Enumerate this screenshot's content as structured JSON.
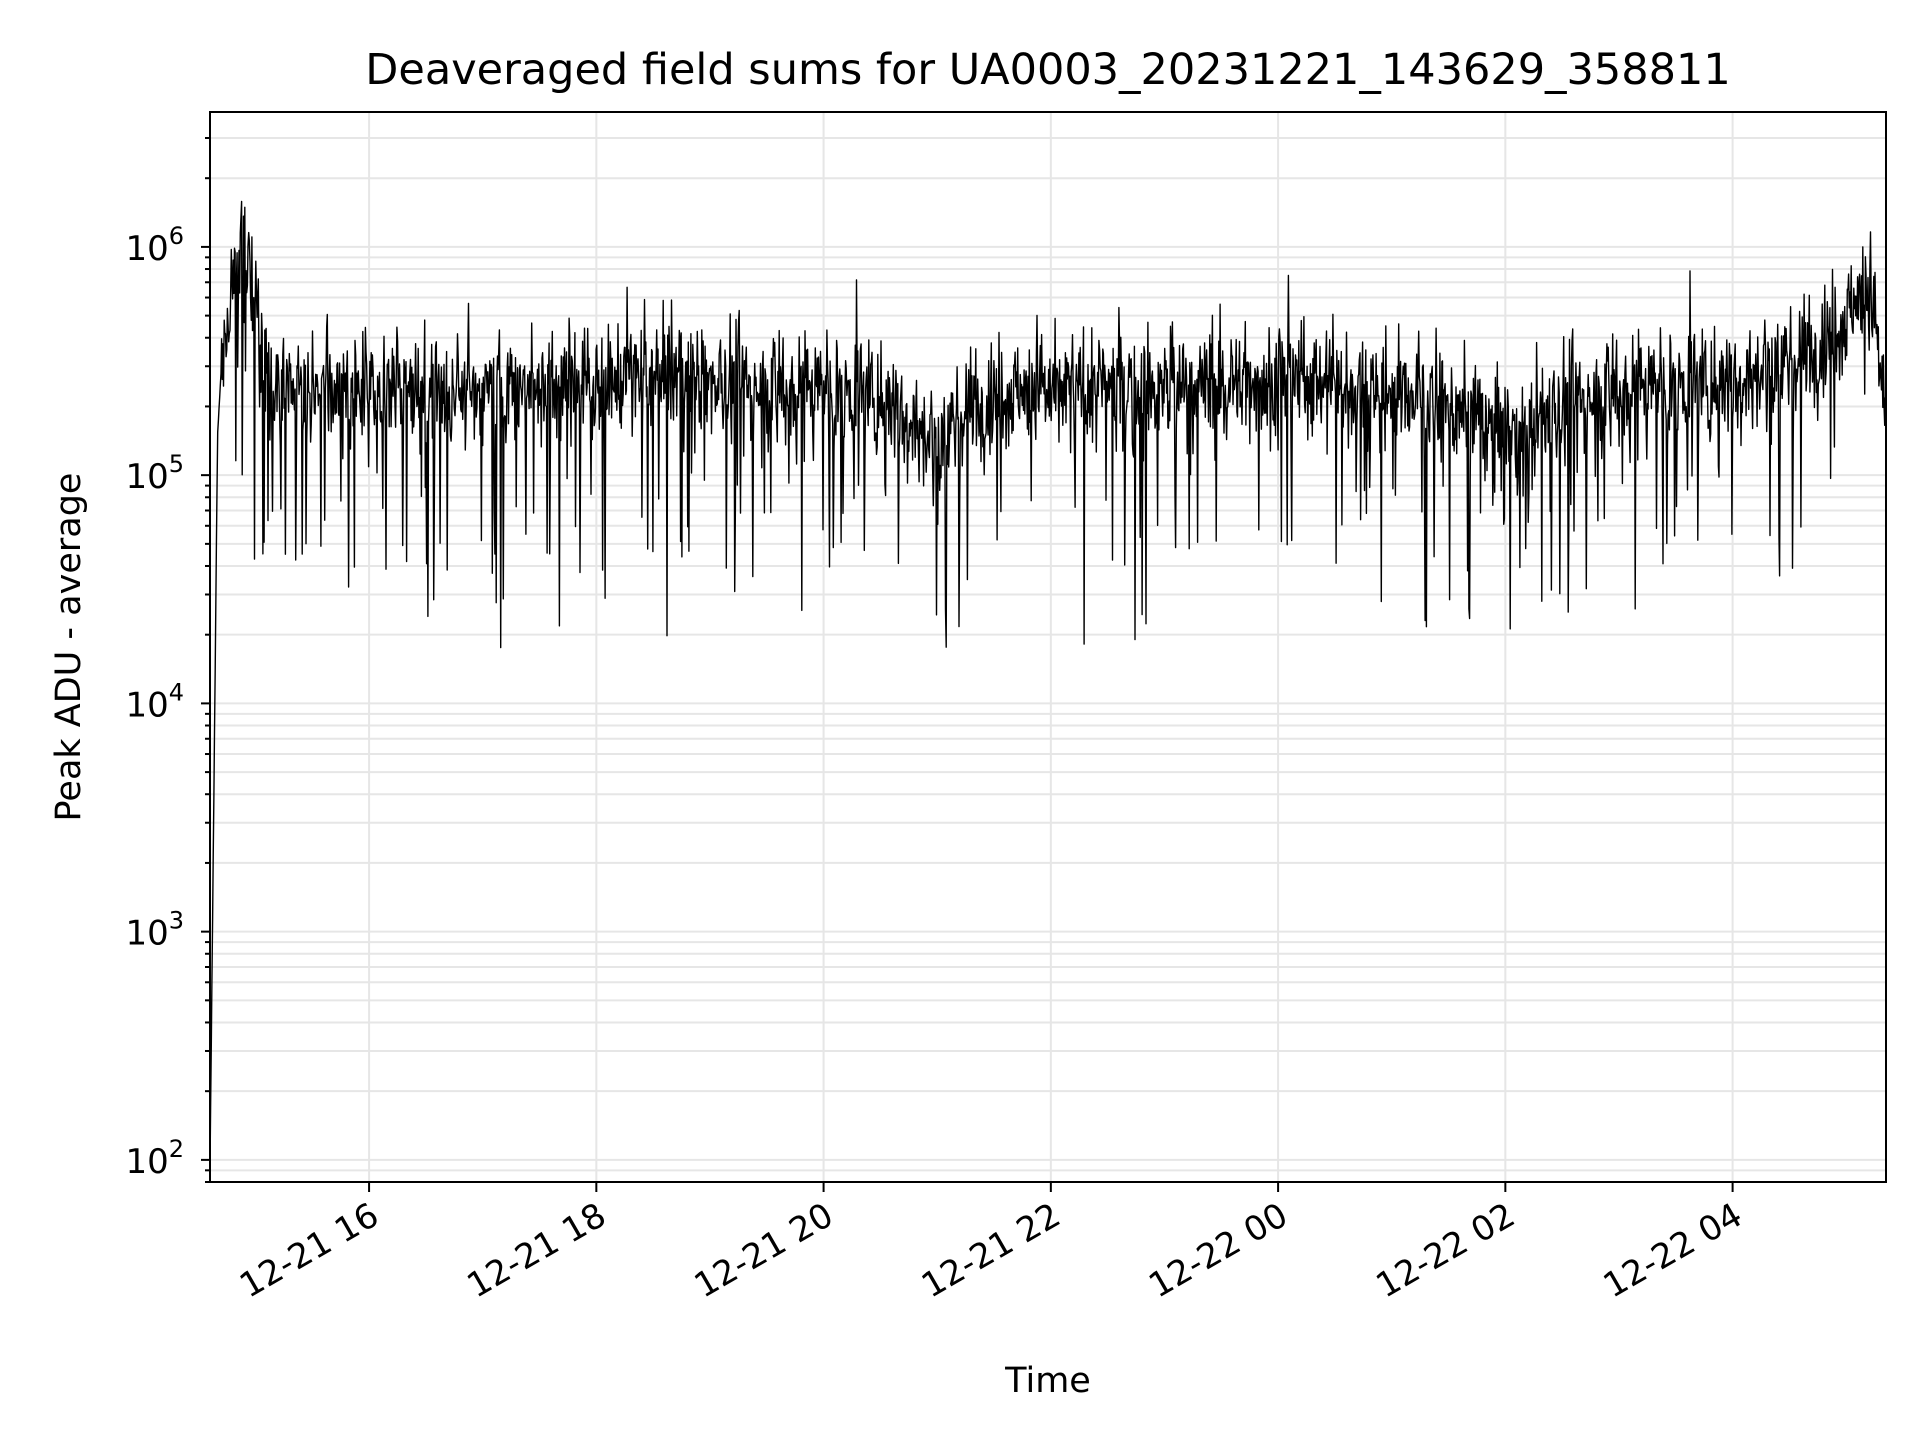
{
  "chart_data": {
    "type": "line",
    "title": "Deaveraged field sums for UA0003_20231221_143629_358811",
    "xlabel": "Time",
    "ylabel": "Peak ADU - average",
    "yscale": "log",
    "ylim": [
      80,
      3900000
    ],
    "xlim": [
      "2023-12-21 14:36",
      "2023-12-22 05:21"
    ],
    "grid": true,
    "line_color": "#000000",
    "grid_color": "#e6e6e6",
    "y_ticks": [
      {
        "base": "10",
        "exp": "2",
        "value": 100
      },
      {
        "base": "10",
        "exp": "3",
        "value": 1000
      },
      {
        "base": "10",
        "exp": "4",
        "value": 10000
      },
      {
        "base": "10",
        "exp": "5",
        "value": 100000
      },
      {
        "base": "10",
        "exp": "6",
        "value": 1000000
      }
    ],
    "x_ticks": [
      {
        "label": "12-21 16",
        "t": "2023-12-21 16:00"
      },
      {
        "label": "12-21 18",
        "t": "2023-12-21 18:00"
      },
      {
        "label": "12-21 20",
        "t": "2023-12-21 20:00"
      },
      {
        "label": "12-21 22",
        "t": "2023-12-21 22:00"
      },
      {
        "label": "12-22 00",
        "t": "2023-12-22 00:00"
      },
      {
        "label": "12-22 02",
        "t": "2023-12-22 02:00"
      },
      {
        "label": "12-22 04",
        "t": "2023-12-22 04:00"
      }
    ],
    "series": [
      {
        "x": [
          "2023-12-21 14:36",
          "2023-12-21 14:40",
          "2023-12-21 14:42",
          "2023-12-21 14:45",
          "2023-12-21 14:50",
          "2023-12-21 14:55",
          "2023-12-21 15:00",
          "2023-12-21 15:05",
          "2023-12-21 15:10",
          "2023-12-21 15:20",
          "2023-12-21 15:30",
          "2023-12-21 15:45",
          "2023-12-21 16:00",
          "2023-12-21 16:15",
          "2023-12-21 16:30",
          "2023-12-21 16:45",
          "2023-12-21 17:00",
          "2023-12-21 17:15",
          "2023-12-21 17:30",
          "2023-12-21 17:45",
          "2023-12-21 18:00",
          "2023-12-21 18:15",
          "2023-12-21 18:30",
          "2023-12-21 18:45",
          "2023-12-21 19:00",
          "2023-12-21 19:15",
          "2023-12-21 19:30",
          "2023-12-21 19:45",
          "2023-12-21 20:00",
          "2023-12-21 20:15",
          "2023-12-21 20:30",
          "2023-12-21 20:45",
          "2023-12-21 21:00",
          "2023-12-21 21:15",
          "2023-12-21 21:30",
          "2023-12-21 21:45",
          "2023-12-21 22:00",
          "2023-12-21 22:15",
          "2023-12-21 22:30",
          "2023-12-21 22:45",
          "2023-12-21 23:00",
          "2023-12-21 23:15",
          "2023-12-21 23:30",
          "2023-12-21 23:45",
          "2023-12-22 00:00",
          "2023-12-22 00:15",
          "2023-12-22 00:30",
          "2023-12-22 00:45",
          "2023-12-22 01:00",
          "2023-12-22 01:15",
          "2023-12-22 01:30",
          "2023-12-22 01:45",
          "2023-12-22 02:00",
          "2023-12-22 02:15",
          "2023-12-22 02:30",
          "2023-12-22 02:45",
          "2023-12-22 03:00",
          "2023-12-22 03:15",
          "2023-12-22 03:30",
          "2023-12-22 03:45",
          "2023-12-22 04:00",
          "2023-12-22 04:15",
          "2023-12-22 04:30",
          "2023-12-22 04:45",
          "2023-12-22 05:00",
          "2023-12-22 05:10",
          "2023-12-22 05:15",
          "2023-12-22 05:21"
        ],
        "y": [
          90,
          150000,
          300000,
          450000,
          900000,
          800000,
          600000,
          300000,
          250000,
          230000,
          220000,
          240000,
          230000,
          250000,
          240000,
          230000,
          240000,
          250000,
          260000,
          250000,
          250000,
          260000,
          270000,
          260000,
          260000,
          250000,
          240000,
          230000,
          240000,
          230000,
          220000,
          180000,
          130000,
          200000,
          230000,
          240000,
          230000,
          240000,
          250000,
          230000,
          240000,
          250000,
          240000,
          260000,
          250000,
          260000,
          250000,
          240000,
          230000,
          220000,
          200000,
          180000,
          150000,
          160000,
          200000,
          220000,
          230000,
          240000,
          250000,
          250000,
          260000,
          280000,
          320000,
          380000,
          500000,
          700000,
          450000,
          200000
        ]
      }
    ]
  }
}
